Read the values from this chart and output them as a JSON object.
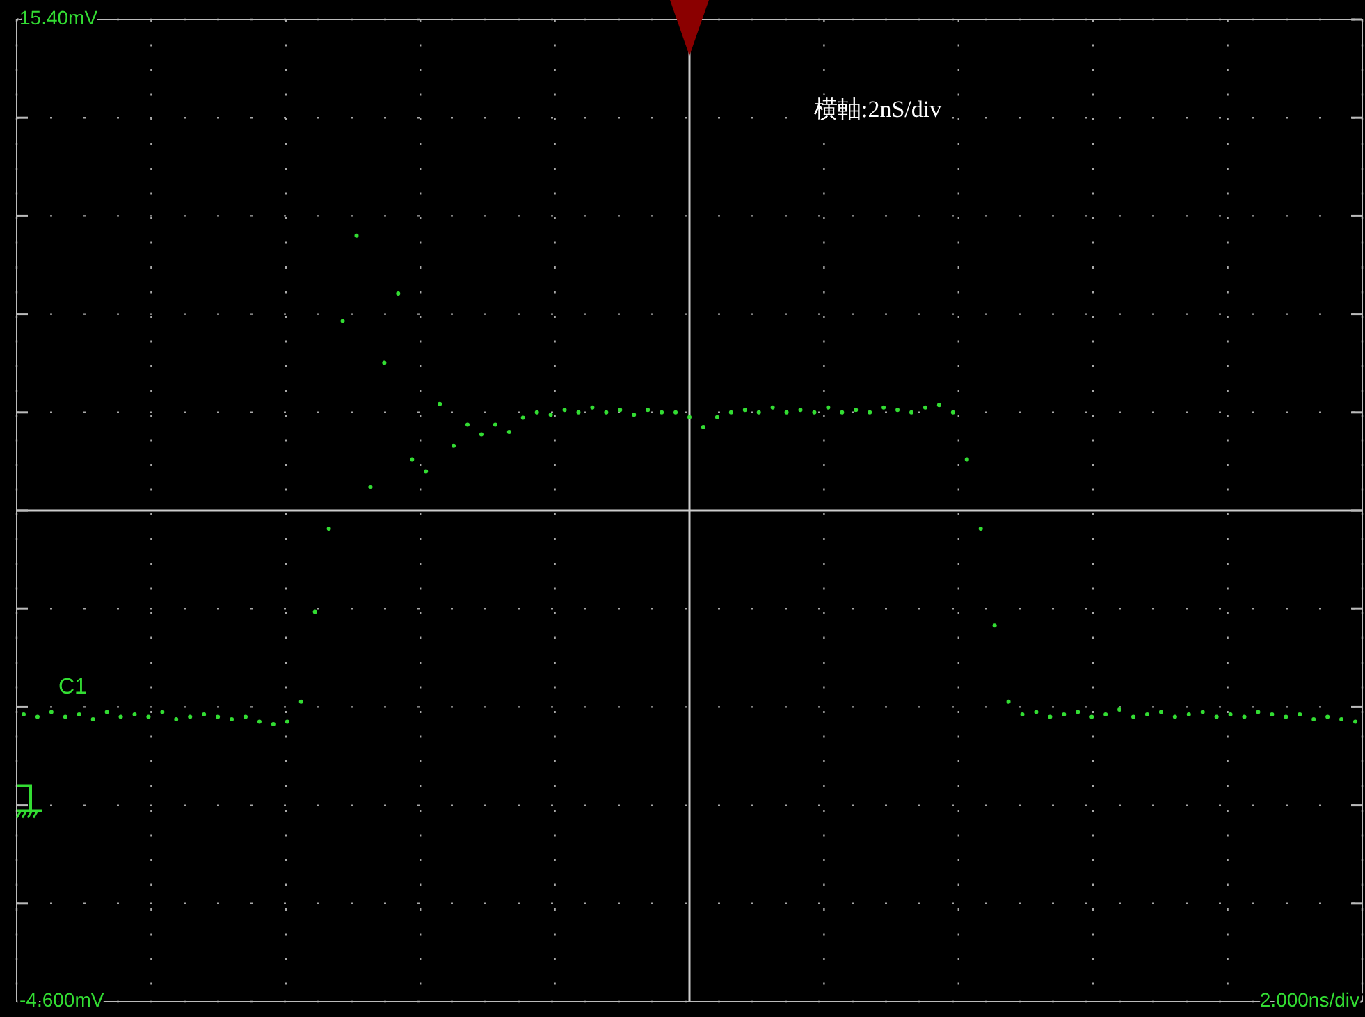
{
  "chart_data": {
    "type": "scatter",
    "categories": [
      null,
      null,
      null,
      null,
      null,
      null,
      null,
      null,
      null,
      null,
      null,
      null,
      null,
      null,
      null,
      null,
      null,
      null,
      null,
      null,
      null,
      null,
      null,
      null,
      null,
      null,
      null,
      null,
      null,
      null,
      null,
      null,
      null,
      null,
      null,
      null,
      null,
      null,
      null,
      null,
      null,
      null,
      null,
      null,
      null,
      null,
      null,
      null,
      null,
      null,
      null,
      null,
      null,
      null,
      null,
      null,
      null,
      null,
      null,
      null,
      null,
      null,
      null,
      null,
      null,
      null,
      null,
      null,
      null,
      null,
      null,
      null,
      null,
      null,
      null,
      null,
      null,
      null,
      null,
      null,
      null,
      null,
      null,
      null,
      null,
      null,
      null,
      null,
      null,
      null,
      null,
      null,
      null,
      null,
      null,
      null,
      null
    ],
    "series": [
      {
        "color": "#33dd33",
        "values": [
          1.25,
          1.2,
          1.3,
          1.2,
          1.25,
          1.15,
          1.3,
          1.2,
          1.25,
          1.2,
          1.3,
          1.15,
          1.2,
          1.25,
          1.2,
          1.15,
          1.2,
          1.1,
          1.05,
          1.1,
          1.51,
          3.34,
          5.03,
          9.26,
          11.0,
          5.88,
          8.41,
          9.82,
          6.44,
          6.2,
          7.57,
          6.72,
          7.15,
          6.95,
          7.15,
          7.0,
          7.29,
          7.4,
          7.35,
          7.45,
          7.4,
          7.5,
          7.4,
          7.45,
          7.35,
          7.45,
          7.4,
          7.4,
          7.3,
          7.1,
          7.3,
          7.4,
          7.45,
          7.4,
          7.5,
          7.4,
          7.45,
          7.4,
          7.5,
          7.4,
          7.45,
          7.4,
          7.5,
          7.45,
          7.4,
          7.5,
          7.55,
          7.4,
          6.44,
          5.03,
          3.06,
          1.51,
          1.25,
          1.3,
          1.2,
          1.25,
          1.3,
          1.2,
          1.25,
          1.35,
          1.2,
          1.25,
          1.3,
          1.2,
          1.25,
          1.3,
          1.2,
          1.25,
          1.2,
          1.3,
          1.25,
          1.2,
          1.25,
          1.15,
          1.2,
          1.15,
          1.1
        ]
      }
    ],
    "ylim": [
      -4.6,
      15.4
    ],
    "yticks": [
      {
        "value": 15.4,
        "label": "15.40mV"
      },
      {
        "value": 13.4,
        "label": null
      },
      {
        "value": 11.4,
        "label": null
      },
      {
        "value": 9.4,
        "label": null
      },
      {
        "value": 7.4,
        "label": null
      },
      {
        "value": 5.4,
        "label": null
      },
      {
        "value": 3.4,
        "label": null
      },
      {
        "value": 1.4,
        "label": null
      },
      {
        "value": -0.6,
        "label": null
      },
      {
        "value": -2.6,
        "label": null
      },
      {
        "value": -4.6,
        "label": "-4.600mV"
      }
    ],
    "grid": true,
    "marker": "circle",
    "annotations": [
      "横軸:2nS/div",
      "C1",
      "2.000ns/div"
    ]
  }
}
